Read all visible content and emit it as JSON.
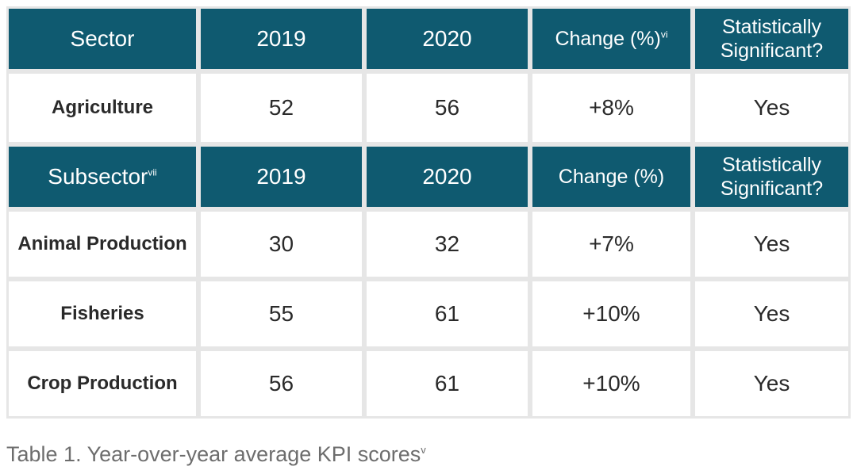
{
  "sector_header": {
    "label": "Sector",
    "col_2019": "2019",
    "col_2020": "2020",
    "change": "Change (%)",
    "change_note": "vi",
    "significant": "Statistically Significant?"
  },
  "sector_rows": [
    {
      "name": "Agriculture",
      "v2019": "52",
      "v2020": "56",
      "change": "+8%",
      "significant": "Yes"
    }
  ],
  "subsector_header": {
    "label": "Subsector",
    "label_note": "vii",
    "col_2019": "2019",
    "col_2020": "2020",
    "change": "Change (%)",
    "significant": "Statistically Significant?"
  },
  "subsector_rows": [
    {
      "name": "Animal Production",
      "v2019": "30",
      "v2020": "32",
      "change": "+7%",
      "significant": "Yes"
    },
    {
      "name": "Fisheries",
      "v2019": "55",
      "v2020": "61",
      "change": "+10%",
      "significant": "Yes"
    },
    {
      "name": "Crop Production",
      "v2019": "56",
      "v2020": "61",
      "change": "+10%",
      "significant": "Yes"
    }
  ],
  "caption": {
    "text": "Table 1. Year-over-year average KPI scores",
    "note": "v"
  },
  "colors": {
    "header_bg": "#0f5a70",
    "header_text": "#ffffff",
    "grid": "#e6e6e6",
    "caption_text": "#6d6d6d"
  }
}
